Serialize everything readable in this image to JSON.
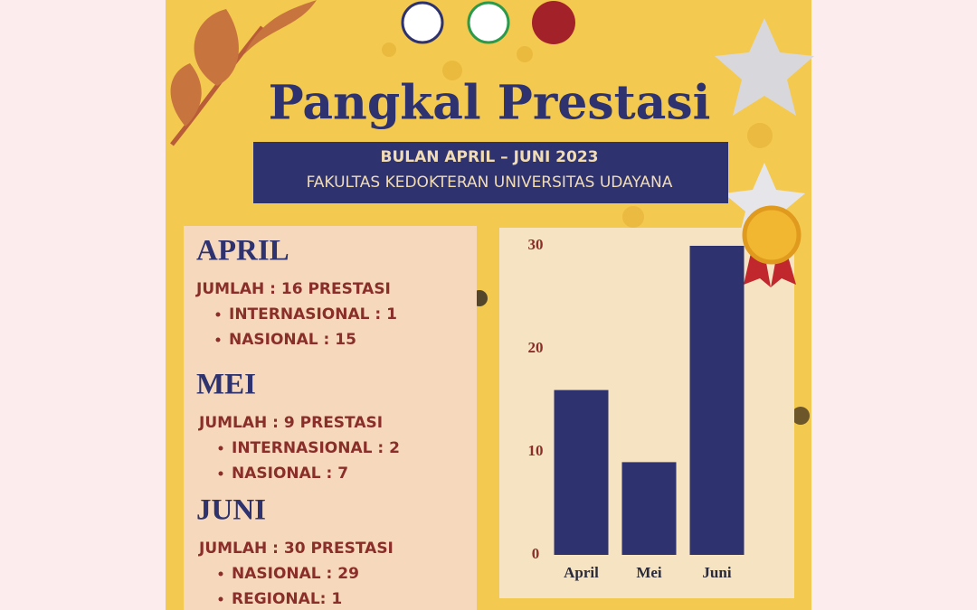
{
  "header": {
    "title": "Pangkal Prestasi",
    "period": "BULAN APRIL – JUNI 2023",
    "faculty": "FAKULTAS KEDOKTERAN UNIVERSITAS UDAYANA"
  },
  "months": [
    {
      "name": "APRIL",
      "total": "JUMLAH : 16 PRESTASI",
      "items": [
        "INTERNASIONAL : 1",
        "NASIONAL : 15"
      ]
    },
    {
      "name": "MEI",
      "total": "JUMLAH : 9 PRESTASI",
      "items": [
        "INTERNASIONAL : 2",
        "NASIONAL : 7"
      ]
    },
    {
      "name": "JUNI",
      "total": "JUMLAH : 30 PRESTASI",
      "items": [
        "NASIONAL : 29",
        "REGIONAL: 1"
      ]
    }
  ],
  "chart_data": {
    "type": "bar",
    "categories": [
      "April",
      "Mei",
      "Juni"
    ],
    "values": [
      16,
      9,
      30
    ],
    "color": "#2e3370",
    "ylim": [
      0,
      30
    ],
    "yticks": [
      0,
      10,
      20,
      30
    ]
  }
}
